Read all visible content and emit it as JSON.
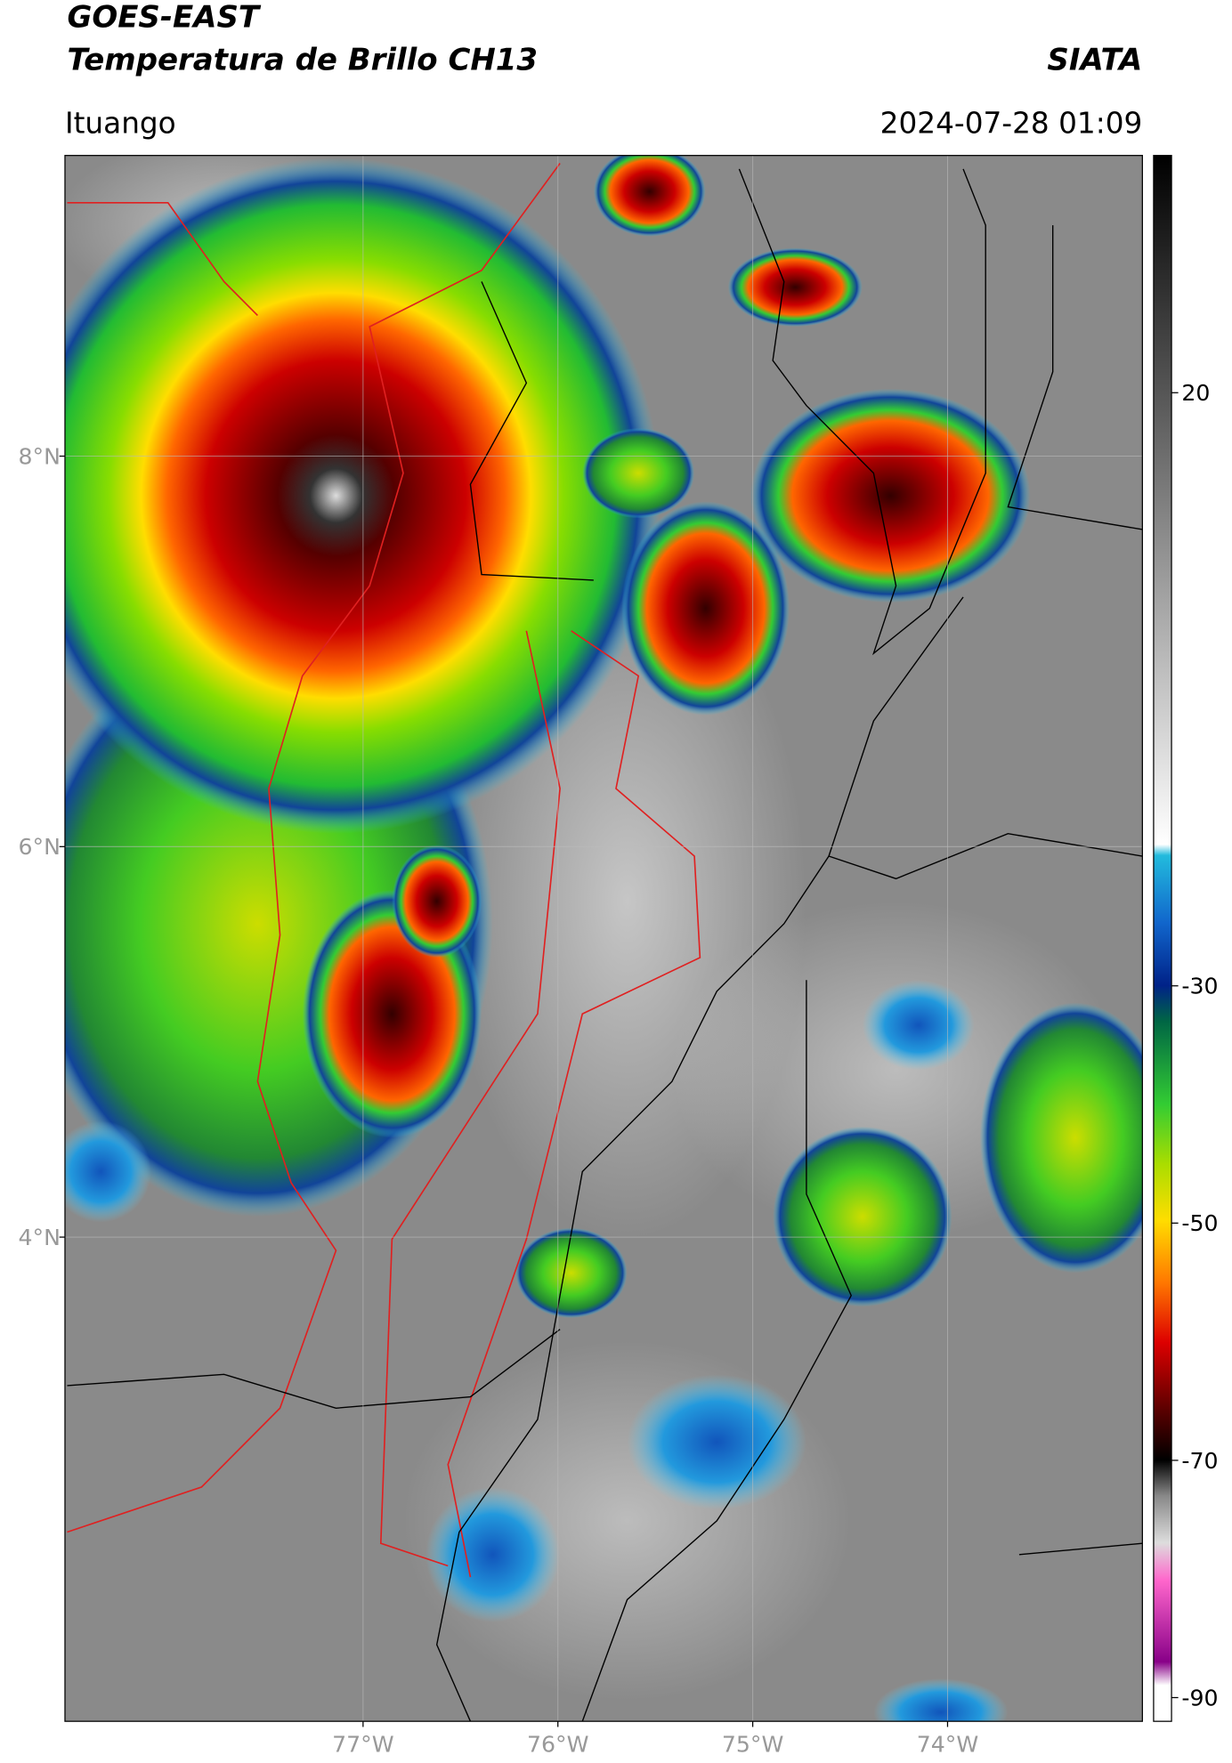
{
  "header": {
    "title_line1": "GOES-EAST",
    "title_line2": "Temperatura de Brillo CH13",
    "source": "SIATA",
    "location": "Ituango",
    "timestamp": "2024-07-28 01:09"
  },
  "map": {
    "xlim": [
      -78.53,
      -73.0
    ],
    "ylim": [
      1.52,
      9.54
    ],
    "xticks": [
      {
        "value": -77,
        "label": "77°W"
      },
      {
        "value": -76,
        "label": "76°W"
      },
      {
        "value": -75,
        "label": "75°W"
      },
      {
        "value": -74,
        "label": "74°W"
      }
    ],
    "yticks": [
      {
        "value": 8,
        "label": "8°N"
      },
      {
        "value": 6,
        "label": "6°N"
      },
      {
        "value": 4,
        "label": "4°N"
      }
    ],
    "grid": true
  },
  "colorbar": {
    "lim": [
      -92,
      40
    ],
    "ticks": [
      20,
      -30,
      -50,
      -70,
      -90
    ]
  }
}
